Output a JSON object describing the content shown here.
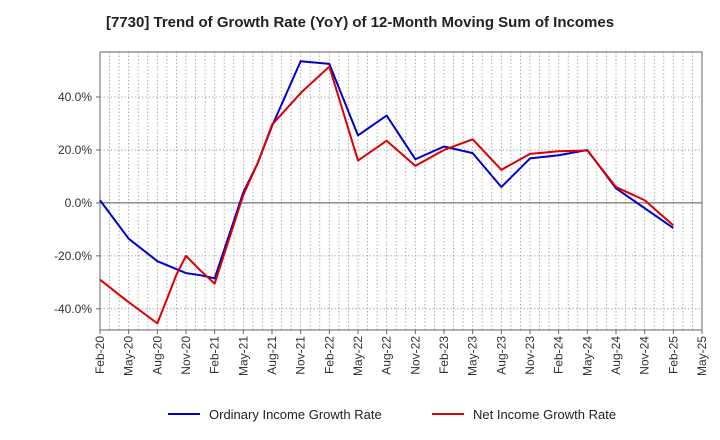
{
  "chart_data": {
    "type": "line",
    "title": "[7730]  Trend of Growth Rate (YoY) of 12-Month Moving Sum of Incomes",
    "xlabel": "",
    "ylabel": "",
    "x_tick_labels": [
      "Feb-20",
      "May-20",
      "Aug-20",
      "Nov-20",
      "Feb-21",
      "May-21",
      "Aug-21",
      "Nov-21",
      "Feb-22",
      "May-22",
      "Aug-22",
      "Nov-22",
      "Feb-23",
      "May-23",
      "Aug-23",
      "Nov-23",
      "Feb-24",
      "May-24",
      "Aug-24",
      "Nov-24",
      "Feb-25",
      "May-25"
    ],
    "y_tick_labels": [
      "40.0%",
      "20.0%",
      "0.0%",
      "-20.0%",
      "-40.0%"
    ],
    "y_ticks": [
      40,
      20,
      0,
      -20,
      -40
    ],
    "ylim": [
      -48,
      57
    ],
    "grid": true,
    "legend_position": "bottom",
    "series": [
      {
        "name": "Ordinary Income Growth Rate",
        "color": "#0000cc",
        "points": [
          [
            0,
            1.0
          ],
          [
            1,
            -13.5
          ],
          [
            2,
            -22.0
          ],
          [
            3,
            -26.5
          ],
          [
            3.5,
            -27.3
          ],
          [
            4,
            -28.5
          ],
          [
            5,
            4.0
          ],
          [
            5.5,
            15.0
          ],
          [
            6,
            29.0
          ],
          [
            7,
            53.5
          ],
          [
            8,
            52.5
          ],
          [
            9,
            25.5
          ],
          [
            10,
            33.0
          ],
          [
            11,
            16.5
          ],
          [
            12,
            21.3
          ],
          [
            13,
            18.8
          ],
          [
            14,
            6.0
          ],
          [
            15,
            16.8
          ],
          [
            16,
            18.0
          ],
          [
            17,
            20.0
          ],
          [
            18,
            5.5
          ],
          [
            19,
            -2.0
          ],
          [
            20,
            -9.5
          ]
        ]
      },
      {
        "name": "Net Income Growth Rate",
        "color": "#dd0000",
        "points": [
          [
            0,
            -29.0
          ],
          [
            1,
            -37.5
          ],
          [
            2,
            -45.5
          ],
          [
            2.33,
            -36.5
          ],
          [
            2.67,
            -27.0
          ],
          [
            3,
            -20.0
          ],
          [
            3.5,
            -25.5
          ],
          [
            4,
            -30.5
          ],
          [
            5,
            3.0
          ],
          [
            5.5,
            15.0
          ],
          [
            6,
            29.5
          ],
          [
            7,
            41.5
          ],
          [
            8,
            51.5
          ],
          [
            9,
            16.0
          ],
          [
            10,
            23.5
          ],
          [
            11,
            14.0
          ],
          [
            12,
            20.0
          ],
          [
            13,
            24.0
          ],
          [
            14,
            12.5
          ],
          [
            15,
            18.5
          ],
          [
            16,
            19.5
          ],
          [
            17,
            19.8
          ],
          [
            18,
            6.0
          ],
          [
            19,
            1.0
          ],
          [
            20,
            -8.5
          ]
        ]
      }
    ]
  }
}
